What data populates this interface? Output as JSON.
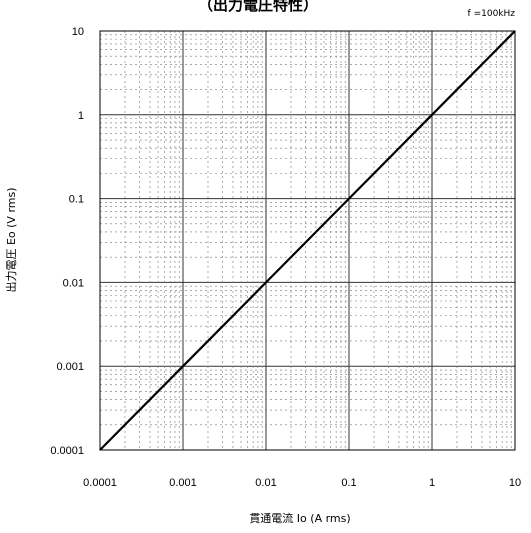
{
  "chart_data": {
    "type": "line",
    "title": "（出力電圧特性）",
    "annotation": "f =100kHz",
    "xlabel": "貫通電流 Io (A rms)",
    "ylabel": "出力電圧 Eo (V rms)",
    "xscale": "log",
    "yscale": "log",
    "xlim": [
      0.0001,
      10
    ],
    "ylim": [
      0.0001,
      10
    ],
    "xticks": [
      "0.0001",
      "0.001",
      "0.01",
      "0.1",
      "1",
      "10"
    ],
    "yticks": [
      "0.0001",
      "0.001",
      "0.01",
      "0.1",
      "1",
      "10"
    ],
    "grid": true,
    "series": [
      {
        "x": [
          0.0001,
          0.001,
          0.01,
          0.1,
          1,
          10
        ],
        "y": [
          0.0001,
          0.001,
          0.01,
          0.1,
          1,
          10
        ]
      }
    ]
  }
}
